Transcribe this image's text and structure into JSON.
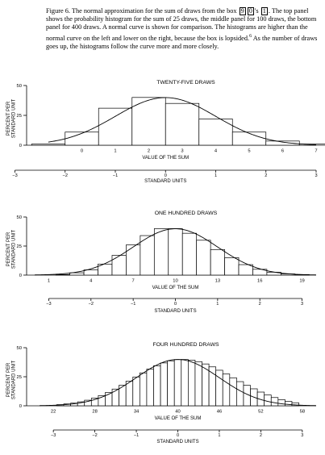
{
  "caption": {
    "label": "Figure 6.",
    "part1": "The normal approximation for the sum of draws from the box",
    "box_values": [
      "9",
      "0",
      "1"
    ],
    "quote": "'s",
    "part2": ". The top panel shows the probability histogram for the sum of 25 draws, the middle panel for 100 draws, the bottom panel for 400 draws. A normal curve is shown for comparison. The histograms are higher than the normal curve on the left and lower on the right, because the box is lopsided.",
    "footnote": "6",
    "part3": "As the number of draws goes up, the histograms follow the curve more and more closely."
  },
  "colors": {
    "ink": "#000000",
    "background": "#ffffff"
  },
  "chart_data": [
    {
      "type": "bar",
      "title": "TWENTY-FIVE DRAWS",
      "ylabel": "PERCENT PER STANDARD UNIT",
      "xlabel": "VALUE OF THE SUM",
      "ylim": [
        0,
        50
      ],
      "yticks": [
        0,
        25,
        50
      ],
      "xticks": [
        0,
        1,
        2,
        3,
        4,
        5,
        6,
        7
      ],
      "x": [
        -1,
        0,
        1,
        2,
        3,
        4,
        5,
        6,
        7
      ],
      "values": [
        1,
        11,
        31,
        40,
        35,
        22,
        11,
        3.5,
        1
      ],
      "curve": {
        "mean": 2.5,
        "sd": 1.5
      },
      "std_axis": {
        "label": "STANDARD UNITS",
        "ticks": [
          -3,
          -2,
          -1,
          0,
          1,
          2,
          3
        ]
      }
    },
    {
      "type": "bar",
      "title": "ONE HUNDRED DRAWS",
      "ylabel": "PERCENT PER STANDARD UNIT",
      "xlabel": "VALUE OF THE SUM",
      "ylim": [
        0,
        50
      ],
      "yticks": [
        0,
        25,
        50
      ],
      "xticks": [
        1,
        4,
        7,
        10,
        13,
        16,
        19
      ],
      "x": [
        2,
        3,
        4,
        5,
        6,
        7,
        8,
        9,
        10,
        11,
        12,
        13,
        14,
        15,
        16,
        17,
        18,
        19
      ],
      "values": [
        0.5,
        2,
        4.5,
        9.5,
        17,
        26,
        34,
        40,
        40,
        36,
        30,
        22,
        15,
        9,
        5,
        2.5,
        1,
        0.5
      ],
      "curve": {
        "mean": 10,
        "sd": 3
      },
      "std_axis": {
        "label": "STANDARD UNITS",
        "ticks": [
          -3,
          -2,
          -1,
          0,
          1,
          2,
          3
        ]
      }
    },
    {
      "type": "bar",
      "title": "FOUR HUNDRED DRAWS",
      "ylabel": "PERCENT PER STANDARD UNIT",
      "xlabel": "VALUE OF THE SUM",
      "ylim": [
        0,
        50
      ],
      "yticks": [
        0,
        25,
        50
      ],
      "xticks": [
        22,
        28,
        34,
        40,
        46,
        52,
        58
      ],
      "x": [
        23,
        24,
        25,
        26,
        27,
        28,
        29,
        30,
        31,
        32,
        33,
        34,
        35,
        36,
        37,
        38,
        39,
        40,
        41,
        42,
        43,
        44,
        45,
        46,
        47,
        48,
        49,
        50,
        51,
        52,
        53,
        54,
        55,
        56,
        57
      ],
      "values": [
        1,
        1.6,
        2.3,
        3.4,
        4.8,
        6.6,
        8.8,
        11.4,
        14.4,
        17.7,
        21.2,
        24.8,
        28.3,
        31.6,
        34.5,
        36.9,
        38.7,
        39.7,
        39.9,
        39.3,
        38,
        36,
        33.5,
        30.6,
        27.4,
        24.1,
        20.8,
        17.6,
        14.6,
        11.8,
        9.3,
        7.1,
        5.3,
        3.8,
        2.6
      ],
      "curve": {
        "mean": 40,
        "sd": 6
      },
      "std_axis": {
        "label": "STANDARD UNITS",
        "ticks": [
          -3,
          -2,
          -1,
          0,
          1,
          2,
          3
        ]
      }
    }
  ]
}
